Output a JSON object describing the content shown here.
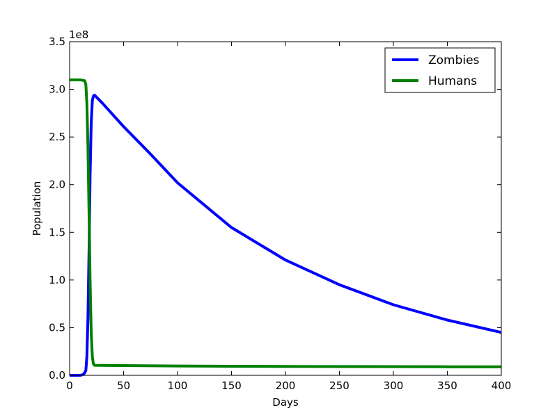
{
  "chart_data": {
    "type": "line",
    "title": "",
    "xlabel": "Days",
    "ylabel": "Population",
    "y_scale_label": "1e8",
    "xlim": [
      0,
      400
    ],
    "ylim": [
      0,
      3.5
    ],
    "y_multiplier": 100000000,
    "x_ticks": [
      0,
      50,
      100,
      150,
      200,
      250,
      300,
      350,
      400
    ],
    "x_tick_labels": [
      "0",
      "50",
      "100",
      "150",
      "200",
      "250",
      "300",
      "350",
      "400"
    ],
    "y_ticks": [
      0,
      0.5,
      1.0,
      1.5,
      2.0,
      2.5,
      3.0,
      3.5
    ],
    "y_tick_labels": [
      "0.0",
      "0.5",
      "1.0",
      "1.5",
      "2.0",
      "2.5",
      "3.0",
      "3.5"
    ],
    "grid": false,
    "legend_position": "top-right",
    "series": [
      {
        "name": "Zombies",
        "color": "#0000ff",
        "x": [
          0,
          10,
          13,
          15,
          16,
          17,
          18,
          19,
          20,
          21,
          22,
          23,
          30,
          50,
          75,
          100,
          150,
          200,
          250,
          300,
          350,
          400
        ],
        "y": [
          0.0,
          0.0,
          0.01,
          0.05,
          0.2,
          0.6,
          1.3,
          2.1,
          2.65,
          2.88,
          2.93,
          2.94,
          2.86,
          2.61,
          2.32,
          2.02,
          1.55,
          1.21,
          0.95,
          0.74,
          0.58,
          0.45
        ]
      },
      {
        "name": "Humans",
        "color": "#008000",
        "x": [
          0,
          10,
          14,
          15,
          16,
          17,
          18,
          19,
          20,
          21,
          22,
          23,
          30,
          50,
          100,
          150,
          200,
          250,
          300,
          350,
          400
        ],
        "y": [
          3.1,
          3.1,
          3.09,
          3.05,
          2.85,
          2.4,
          1.7,
          1.0,
          0.45,
          0.2,
          0.12,
          0.105,
          0.104,
          0.102,
          0.098,
          0.095,
          0.093,
          0.092,
          0.091,
          0.09,
          0.09
        ]
      }
    ]
  }
}
